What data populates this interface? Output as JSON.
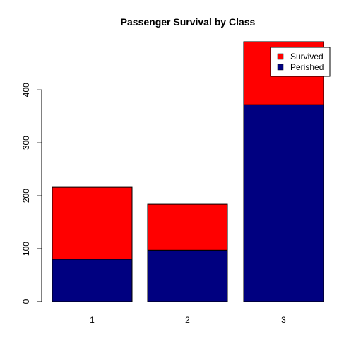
{
  "chart_data": {
    "type": "bar",
    "stacked": true,
    "title": "Passenger Survival by Class",
    "xlabel": "",
    "ylabel": "",
    "categories": [
      "1",
      "2",
      "3"
    ],
    "series": [
      {
        "name": "Perished",
        "values": [
          80,
          97,
          372
        ],
        "color": "#000080"
      },
      {
        "name": "Survived",
        "values": [
          136,
          87,
          119
        ],
        "color": "#ff0000"
      }
    ],
    "ylim": [
      0,
      491
    ],
    "yticks": [
      0,
      100,
      200,
      300,
      400
    ],
    "grid": false,
    "legend": {
      "position": "top-right",
      "entries": [
        "Survived",
        "Perished"
      ]
    }
  }
}
